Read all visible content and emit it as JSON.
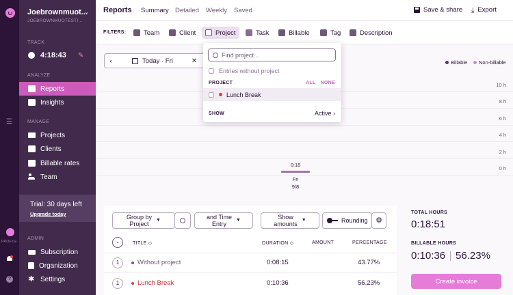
{
  "workspace": {
    "name": "Joebrownmuot...",
    "subtitle": "JOEBROWNMUOTESTI..."
  },
  "rail": {
    "profile_label": "PROFILE"
  },
  "sidebar": {
    "track_section": "TRACK",
    "timer": "4:18:43",
    "analyze_section": "ANALYZE",
    "analyze_items": [
      {
        "label": "Reports",
        "icon": "reports-icon"
      },
      {
        "label": "Insights",
        "icon": "insights-icon"
      }
    ],
    "manage_section": "MANAGE",
    "manage_items": [
      {
        "label": "Projects",
        "icon": "folder-icon"
      },
      {
        "label": "Clients",
        "icon": "client-icon"
      },
      {
        "label": "Billable rates",
        "icon": "rate-icon"
      },
      {
        "label": "Team",
        "icon": "team-icon"
      }
    ],
    "trial": {
      "text": "Trial: 30 days left",
      "link": "Upgrade today"
    },
    "admin_section": "ADMIN",
    "admin_items": [
      {
        "label": "Subscription",
        "icon": "card-icon"
      },
      {
        "label": "Organization",
        "icon": "building-icon"
      },
      {
        "label": "Settings",
        "icon": "gear-icon"
      }
    ]
  },
  "header": {
    "title": "Reports",
    "tabs": [
      {
        "label": "Summary",
        "active": true
      },
      {
        "label": "Detailed"
      },
      {
        "label": "Weekly"
      },
      {
        "label": "Saved"
      }
    ],
    "save_label": "Save & share",
    "export_label": "Export"
  },
  "filters": {
    "label": "FILTERS:",
    "items": [
      {
        "label": "Team"
      },
      {
        "label": "Client"
      },
      {
        "label": "Project",
        "active": true
      },
      {
        "label": "Task"
      },
      {
        "label": "Billable"
      },
      {
        "label": "Tag"
      },
      {
        "label": "Description"
      }
    ]
  },
  "date_picker": {
    "prev": "‹",
    "label": "Today · Fri",
    "clear": "✕"
  },
  "legend": [
    {
      "label": "Billable",
      "color": "#5a2e6b"
    },
    {
      "label": "Non-billable",
      "color": "#c98fd6"
    }
  ],
  "project_dropdown": {
    "placeholder": "Find project...",
    "without_project": "Entries without project",
    "section": "PROJECT",
    "all": "ALL",
    "none": "NONE",
    "items": [
      {
        "label": "Lunch Break",
        "color": "#e03b3b"
      }
    ],
    "show_label": "SHOW",
    "show_value": "Active ›"
  },
  "chart_data": {
    "type": "bar",
    "categories": [
      "Fri 9/8"
    ],
    "x_labels": [
      {
        "day": "Fri",
        "date": "9/8"
      }
    ],
    "values": [
      0.3
    ],
    "data_labels": [
      "0:18"
    ],
    "y_ticks": [
      "10 h",
      "8 h",
      "6 h",
      "4 h",
      "2 h",
      "0 h"
    ],
    "ylim": [
      0,
      10
    ],
    "legend": [
      "Billable",
      "Non-billable"
    ],
    "legend_position": "top-right"
  },
  "controls": {
    "group_by": "Group by Project",
    "group_by_l1": "Group by",
    "group_by_l2": "Project",
    "and_l1": "and Time",
    "and_l2": "Entry",
    "show_l1": "Show",
    "show_l2": "amounts",
    "rounding": "Rounding"
  },
  "table": {
    "headers": {
      "title": "TITLE",
      "duration": "DURATION",
      "amount": "AMOUNT",
      "percentage": "PERCENTAGE"
    },
    "rows": [
      {
        "num": "1",
        "title": "Without project",
        "duration": "0:08:15",
        "amount": "",
        "percentage": "43.77%"
      },
      {
        "num": "1",
        "title": "Lunch Break",
        "duration": "0:10:36",
        "amount": "",
        "percentage": "56.23%"
      }
    ]
  },
  "totals": {
    "total_label": "TOTAL HOURS",
    "total_value": "0:18:51",
    "billable_label": "BILLABLE HOURS",
    "billable_value": "0:10:36",
    "billable_pct": "56.23%",
    "invoice_button": "Create invoice"
  },
  "colors": {
    "sidebar": "#412a4c",
    "rail": "#2c1338",
    "accent": "#e57cd8",
    "active_nav": "#cc5bbb"
  }
}
